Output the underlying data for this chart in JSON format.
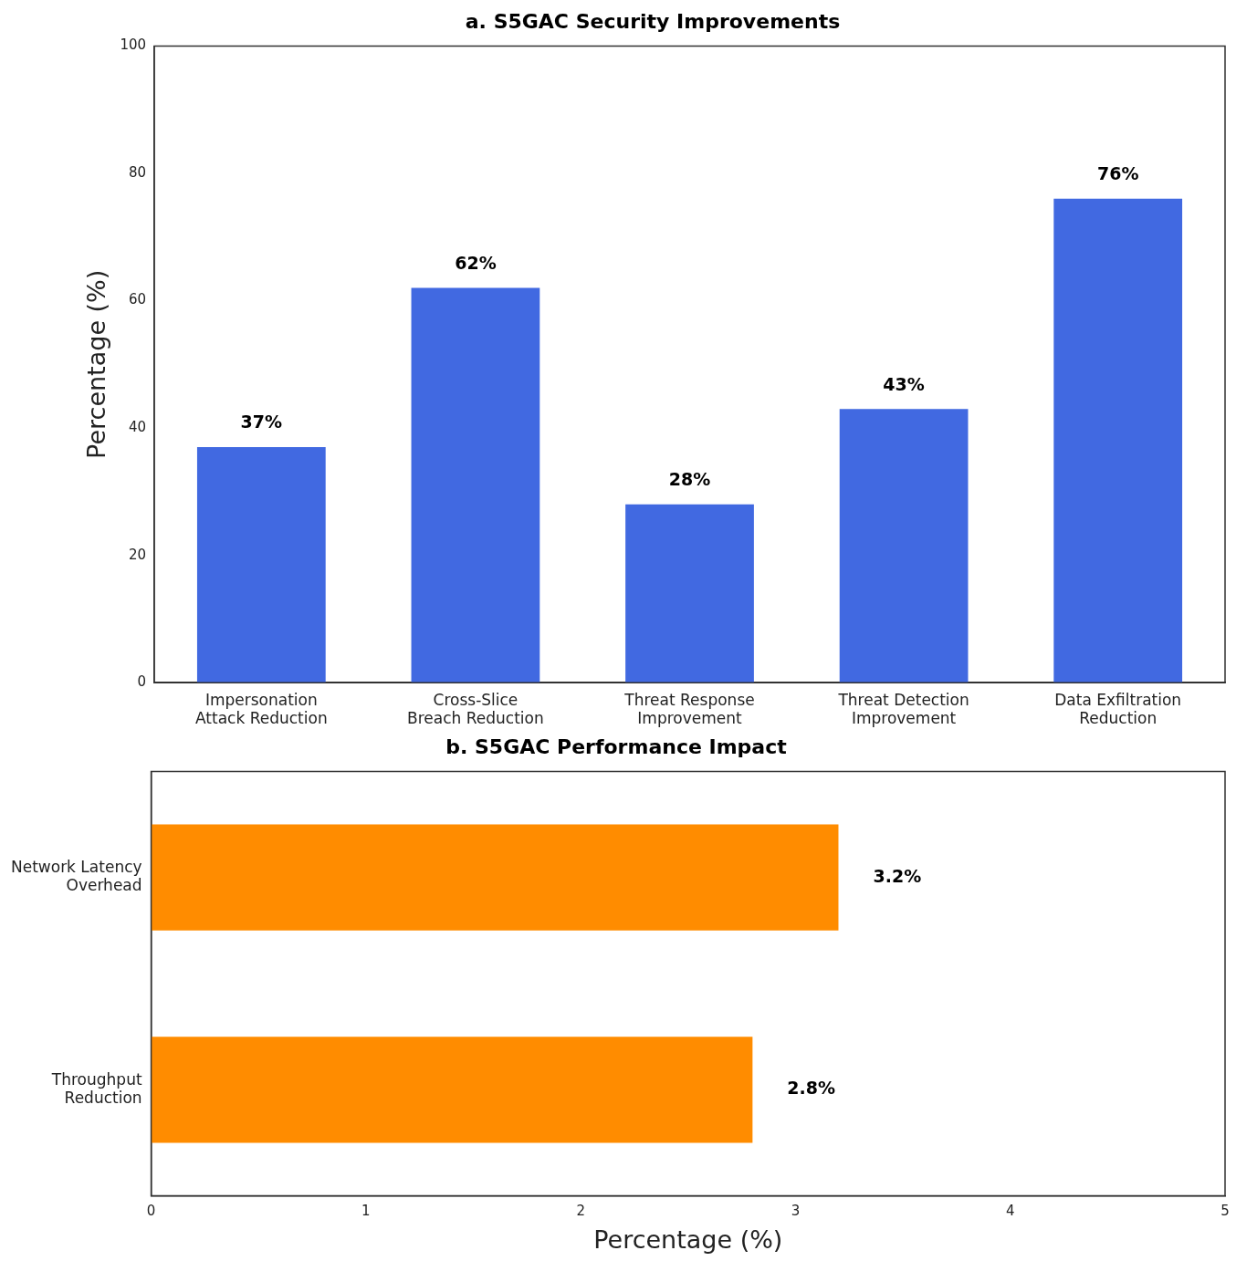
{
  "chart_data": [
    {
      "type": "bar",
      "title": "a. S5GAC Security Improvements",
      "ylabel": "Percentage (%)",
      "categories": [
        "Impersonation Attack Reduction",
        "Cross-Slice Breach Reduction",
        "Threat Response Improvement",
        "Threat Detection Improvement",
        "Data Exfiltration Reduction"
      ],
      "values": [
        37,
        62,
        28,
        43,
        76
      ],
      "value_labels": [
        "37%",
        "62%",
        "28%",
        "43%",
        "76%"
      ],
      "color": "#4169e1",
      "ylim": [
        0,
        100
      ],
      "yticks": [
        0,
        20,
        40,
        60,
        80,
        100
      ]
    },
    {
      "type": "bar",
      "orientation": "horizontal",
      "title": "b. S5GAC Performance Impact",
      "xlabel": "Percentage (%)",
      "categories": [
        "Network Latency Overhead",
        "Throughput Reduction"
      ],
      "values": [
        3.2,
        2.8
      ],
      "value_labels": [
        "3.2%",
        "2.8%"
      ],
      "color": "#ff8c00",
      "xlim": [
        0,
        5
      ],
      "xticks": [
        0,
        1,
        2,
        3,
        4,
        5
      ]
    }
  ]
}
